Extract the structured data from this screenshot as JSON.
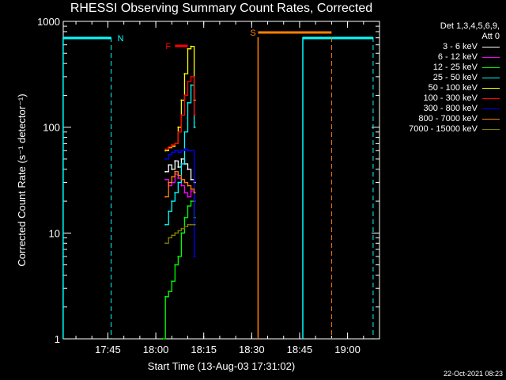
{
  "chart_data": {
    "type": "line",
    "title": "RHESSI Observing Summary Count Rates, Corrected",
    "xlabel": "Start Time (13-Aug-03 17:31:02)",
    "ylabel": "Corrected Count Rate (s⁻¹ detector⁻¹)",
    "yscale": "log",
    "ylim": [
      1,
      1000
    ],
    "xlim": [
      "17:31:02",
      "19:10:00"
    ],
    "x_ticks": [
      "17:45",
      "18:00",
      "18:15",
      "18:30",
      "18:45",
      "19:00"
    ],
    "y_ticks": [
      "1",
      "10",
      "100",
      "1000"
    ],
    "legend_header": [
      "Det 1,3,4,5,6,9,",
      "Att 0"
    ],
    "legend_position": "right",
    "series": [
      {
        "name": "3 - 6 keV",
        "color": "#ffffff",
        "x": [
          "18:03",
          "18:04",
          "18:05",
          "18:06",
          "18:07",
          "18:08",
          "18:09",
          "18:10",
          "18:11",
          "18:12"
        ],
        "values": [
          38,
          44,
          40,
          48,
          42,
          50,
          45,
          40,
          32,
          30
        ]
      },
      {
        "name": "6 - 12 keV",
        "color": "#ff00ff",
        "x": [
          "18:03",
          "18:04",
          "18:05",
          "18:06",
          "18:07",
          "18:08",
          "18:09",
          "18:10",
          "18:11",
          "18:12"
        ],
        "values": [
          32,
          28,
          30,
          36,
          33,
          28,
          24,
          22,
          25,
          20
        ]
      },
      {
        "name": "12 - 25 keV",
        "color": "#00ff00",
        "x": [
          "18:02",
          "18:03",
          "18:04",
          "18:05",
          "18:06",
          "18:07",
          "18:08",
          "18:09",
          "18:10",
          "18:11",
          "18:12"
        ],
        "values": [
          1,
          2.5,
          2.8,
          3.5,
          5,
          6,
          10,
          14,
          18,
          20,
          14
        ]
      },
      {
        "name": "25 - 50 keV",
        "color": "#00ffff",
        "x": [
          "18:03",
          "18:04",
          "18:05",
          "18:06",
          "18:07",
          "18:08",
          "18:09",
          "18:10",
          "18:11",
          "18:12"
        ],
        "values": [
          12,
          16,
          20,
          24,
          30,
          45,
          90,
          170,
          250,
          100
        ]
      },
      {
        "name": "50 - 100 keV",
        "color": "#ffff00",
        "x": [
          "18:03",
          "18:04",
          "18:05",
          "18:06",
          "18:07",
          "18:08",
          "18:09",
          "18:10",
          "18:11",
          "18:12"
        ],
        "values": [
          60,
          64,
          66,
          70,
          100,
          180,
          320,
          550,
          580,
          180
        ]
      },
      {
        "name": "100 - 300 keV",
        "color": "#ff0000",
        "x": [
          "18:03",
          "18:04",
          "18:05",
          "18:06",
          "18:07",
          "18:08",
          "18:09",
          "18:10",
          "18:11",
          "18:12"
        ],
        "values": [
          62,
          65,
          68,
          70,
          90,
          130,
          200,
          270,
          300,
          130
        ]
      },
      {
        "name": "300 - 800 keV",
        "color": "#0000ff",
        "x": [
          "18:03",
          "18:04",
          "18:05",
          "18:06",
          "18:07",
          "18:08",
          "18:09",
          "18:10",
          "18:11",
          "18:12"
        ],
        "values": [
          50,
          55,
          58,
          60,
          58,
          60,
          62,
          60,
          60,
          6
        ]
      },
      {
        "name": "800 - 7000 keV",
        "color": "#ff8000",
        "x": [
          "18:03",
          "18:04",
          "18:05",
          "18:06",
          "18:07",
          "18:08",
          "18:09",
          "18:10",
          "18:11",
          "18:12"
        ],
        "values": [
          22,
          30,
          34,
          38,
          35,
          32,
          30,
          28,
          26,
          24
        ]
      },
      {
        "name": "7000 - 15000 keV",
        "color": "#808000",
        "x": [
          "18:03",
          "18:04",
          "18:05",
          "18:06",
          "18:07",
          "18:08",
          "18:09",
          "18:10",
          "18:11",
          "18:12"
        ],
        "values": [
          8,
          9,
          9.5,
          10,
          10.5,
          11,
          11.5,
          12,
          12,
          12
        ]
      }
    ],
    "annotations": [
      {
        "label": "N",
        "color": "#00ffff",
        "type": "night",
        "bars": [
          [
            "17:31",
            "17:46"
          ],
          [
            "18:46",
            "19:08"
          ]
        ],
        "lines": [
          "17:46",
          "19:08"
        ]
      },
      {
        "label": "F",
        "color": "#ff0000",
        "type": "flare",
        "bars": [
          [
            "18:06",
            "18:10"
          ]
        ]
      },
      {
        "label": "S",
        "color": "#ff8000",
        "type": "saa",
        "bars": [
          [
            "18:32",
            "18:55"
          ]
        ],
        "lines": [
          "18:55"
        ]
      }
    ],
    "solid_markers": [
      {
        "at": "17:31",
        "color": "#00ffff"
      },
      {
        "at": "18:32",
        "color": "#ff8000"
      },
      {
        "at": "18:46",
        "color": "#00ffff"
      }
    ],
    "grid": false
  },
  "footer": {
    "timestamp": "22-Oct-2021 08:23"
  }
}
